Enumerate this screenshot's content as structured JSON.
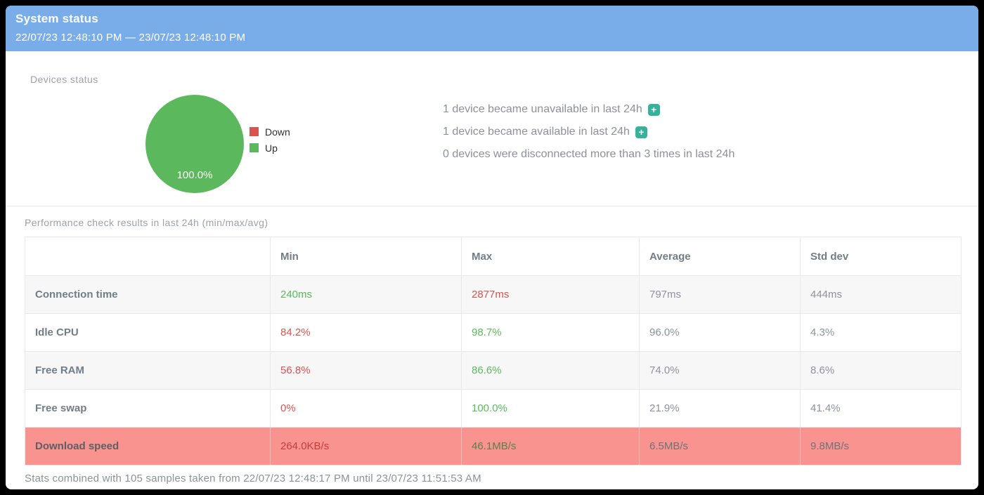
{
  "header": {
    "title": "System status",
    "date_range": "22/07/23 12:48:10 PM — 23/07/23 12:48:10 PM"
  },
  "devices_status": {
    "section_label": "Devices status",
    "chart_data": {
      "type": "pie",
      "slices": [
        {
          "label": "Down",
          "value": 0.0,
          "color": "#d9534f"
        },
        {
          "label": "Up",
          "value": 100.0,
          "color": "#5cb85c"
        }
      ],
      "center_label": "100.0%",
      "legend_position": "right"
    },
    "legend": [
      {
        "label": "Down",
        "color": "#d9534f"
      },
      {
        "label": "Up",
        "color": "#5cb85c"
      }
    ],
    "messages": [
      {
        "text": "1 device became unavailable in last 24h",
        "icon": "plus-badge"
      },
      {
        "text": "1 device became available in last 24h",
        "icon": "plus-badge"
      },
      {
        "text": "0 devices were disconnected more than 3 times in last 24h",
        "icon": null
      }
    ],
    "plus_icon_glyph": "+"
  },
  "performance": {
    "section_label": "Performance check results in last 24h (min/max/avg)",
    "columns": [
      "",
      "Min",
      "Max",
      "Average",
      "Std dev"
    ],
    "rows": [
      {
        "label": "Connection time",
        "highlight": false,
        "cells": [
          {
            "text": "240ms",
            "tone": "good"
          },
          {
            "text": "2877ms",
            "tone": "bad"
          },
          {
            "text": "797ms",
            "tone": "neutral"
          },
          {
            "text": "444ms",
            "tone": "neutral"
          }
        ]
      },
      {
        "label": "Idle CPU",
        "highlight": false,
        "cells": [
          {
            "text": "84.2%",
            "tone": "bad"
          },
          {
            "text": "98.7%",
            "tone": "good"
          },
          {
            "text": "96.0%",
            "tone": "neutral"
          },
          {
            "text": "4.3%",
            "tone": "neutral"
          }
        ]
      },
      {
        "label": "Free RAM",
        "highlight": false,
        "cells": [
          {
            "text": "56.8%",
            "tone": "bad"
          },
          {
            "text": "86.6%",
            "tone": "good"
          },
          {
            "text": "74.0%",
            "tone": "neutral"
          },
          {
            "text": "8.6%",
            "tone": "neutral"
          }
        ]
      },
      {
        "label": "Free swap",
        "highlight": false,
        "cells": [
          {
            "text": "0%",
            "tone": "bad"
          },
          {
            "text": "100.0%",
            "tone": "good"
          },
          {
            "text": "21.9%",
            "tone": "neutral"
          },
          {
            "text": "41.4%",
            "tone": "neutral"
          }
        ]
      },
      {
        "label": "Download speed",
        "highlight": true,
        "cells": [
          {
            "text": "264.0KB/s",
            "tone": "bad"
          },
          {
            "text": "46.1MB/s",
            "tone": "good"
          },
          {
            "text": "6.5MB/s",
            "tone": "neutral"
          },
          {
            "text": "9.8MB/s",
            "tone": "neutral"
          }
        ]
      }
    ],
    "footer": "Stats combined with 105 samples taken from 22/07/23 12:48:17 PM until 23/07/23 11:51:53 AM"
  },
  "colors": {
    "header_bg": "#79ade9",
    "up_green": "#5cb85c",
    "down_red": "#d9534f",
    "highlight_row": "#f9938f",
    "plus_badge": "#35b39a",
    "muted_text": "#8b9299"
  }
}
